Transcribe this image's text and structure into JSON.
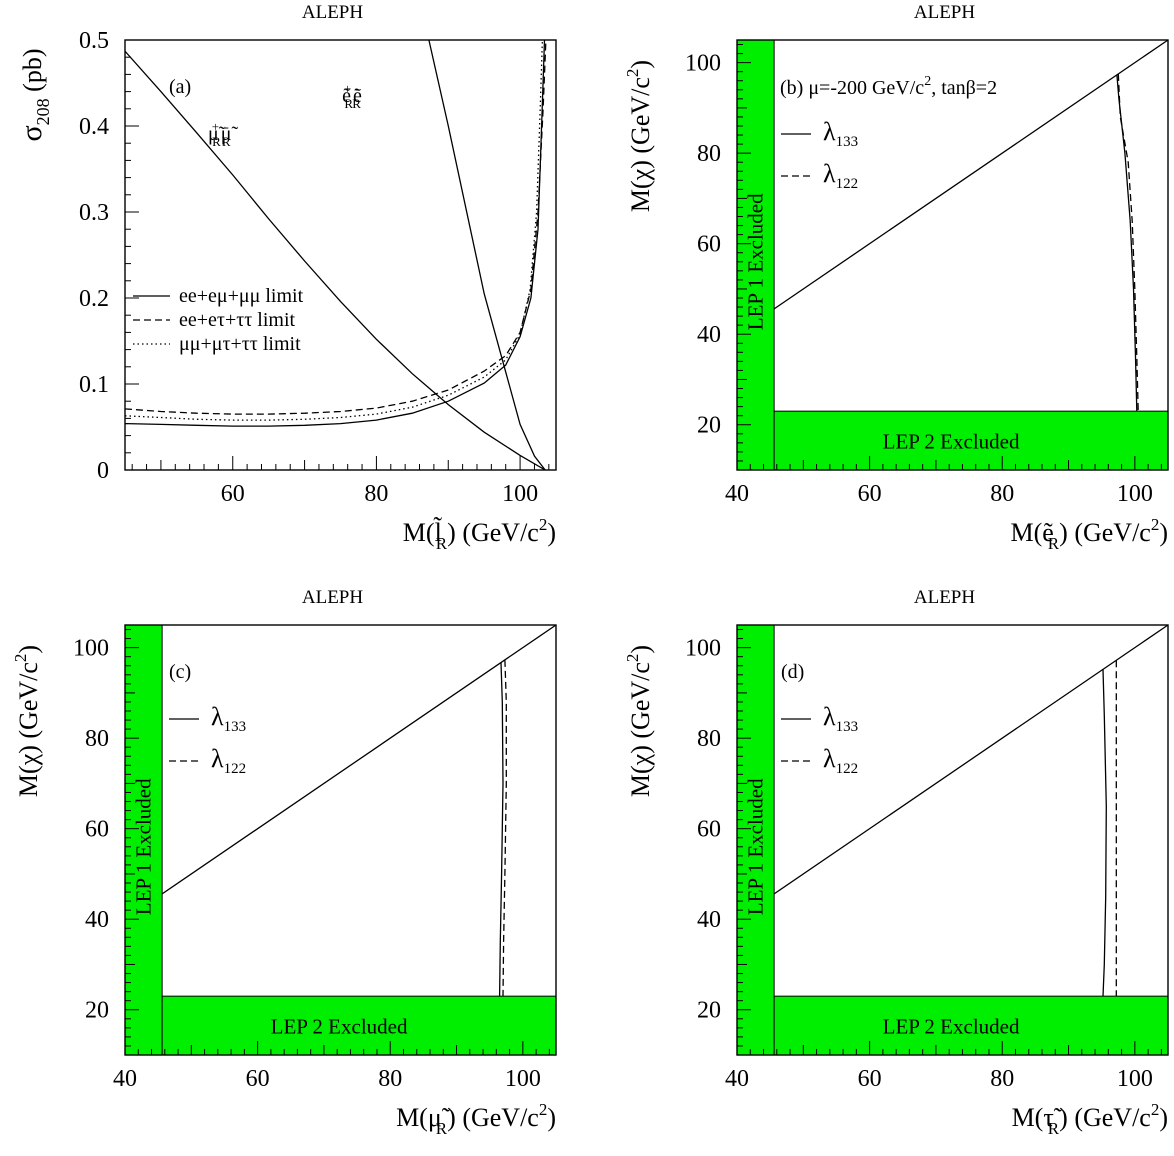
{
  "chart_data": [
    {
      "id": "a",
      "type": "line",
      "title": "ALEPH",
      "panel_label": "(a)",
      "ylabel": "σ_208 (pb)",
      "ylabel_main": "σ",
      "ylabel_sub": "208",
      "ylabel_unit": " (pb)",
      "xlabel_prefix": "M(",
      "xlabel_particle": "l",
      "xlabel_sub": "R",
      "xlabel_suffix": ") (GeV/c",
      "xlabel_sup": "2",
      "xlabel_end": ")",
      "xlim": [
        45,
        105
      ],
      "ylim": [
        0,
        0.5
      ],
      "xticks": [
        60,
        80,
        100
      ],
      "yticks": [
        0,
        0.1,
        0.2,
        0.3,
        0.4,
        0.5
      ],
      "ytick_labels": [
        "0",
        "0.1",
        "0.2",
        "0.3",
        "0.4",
        "0.5"
      ],
      "legend_position": "middle-left",
      "legend": [
        {
          "style": "solid",
          "label": "ee+eμ+μμ limit"
        },
        {
          "style": "dashed",
          "label": "ee+eτ+ττ limit"
        },
        {
          "style": "dotted",
          "label": "μμ+μτ+ττ limit"
        }
      ],
      "annotations": [
        {
          "label": "μ̃R+μ̃R-",
          "main": "μ",
          "sup": "+",
          "sub": "R",
          "main2": "μ",
          "sup2": "-",
          "sub2": "R"
        },
        {
          "label": "ẽR+ẽR-",
          "main": "e",
          "sup": "+",
          "sub": "R",
          "main2": "e",
          "sup2": "-",
          "sub2": "R"
        }
      ],
      "series": [
        {
          "style": "solid",
          "role": "cross-section",
          "x": [
            45,
            50,
            55,
            60,
            65,
            70,
            75,
            80,
            85,
            90,
            95,
            100,
            103.5
          ],
          "y": [
            0.487,
            0.44,
            0.392,
            0.343,
            0.292,
            0.243,
            0.196,
            0.152,
            0.112,
            0.076,
            0.044,
            0.017,
            0.0
          ]
        },
        {
          "style": "solid",
          "role": "cross-section",
          "x": [
            87.3,
            90,
            95,
            100,
            102,
            103.5
          ],
          "y": [
            0.5,
            0.4,
            0.205,
            0.053,
            0.016,
            0.0
          ]
        },
        {
          "style": "solid",
          "role": "limit",
          "x": [
            45,
            50,
            55,
            60,
            65,
            70,
            75,
            80,
            85,
            90,
            95,
            98,
            100,
            101.5,
            102.5,
            103,
            103.4
          ],
          "y": [
            0.054,
            0.053,
            0.052,
            0.051,
            0.051,
            0.052,
            0.054,
            0.058,
            0.066,
            0.08,
            0.101,
            0.122,
            0.155,
            0.2,
            0.28,
            0.4,
            0.5
          ]
        },
        {
          "style": "dashed",
          "role": "limit",
          "x": [
            45,
            50,
            55,
            60,
            65,
            70,
            75,
            80,
            85,
            90,
            95,
            98,
            100,
            101.5,
            102.5,
            103.2,
            103.6
          ],
          "y": [
            0.071,
            0.068,
            0.066,
            0.065,
            0.065,
            0.066,
            0.068,
            0.072,
            0.08,
            0.093,
            0.115,
            0.133,
            0.16,
            0.21,
            0.3,
            0.42,
            0.5
          ]
        },
        {
          "style": "dotted",
          "role": "limit",
          "x": [
            45,
            50,
            55,
            60,
            65,
            70,
            75,
            80,
            85,
            90,
            95,
            98,
            100,
            101.4,
            102.3,
            102.8,
            103.1
          ],
          "y": [
            0.063,
            0.061,
            0.059,
            0.058,
            0.058,
            0.059,
            0.061,
            0.065,
            0.073,
            0.087,
            0.108,
            0.128,
            0.158,
            0.21,
            0.3,
            0.42,
            0.5
          ]
        }
      ]
    },
    {
      "id": "b",
      "type": "line",
      "title": "ALEPH",
      "panel_label": "(b) μ=-200 GeV/c², tanβ=2",
      "panel_label_main": "(b) μ=-200 GeV/c",
      "panel_label_sup": "2",
      "panel_label_tail": ", tanβ=2",
      "ylabel": "M(χ) (GeV/c²)",
      "ylabel_main": "M(χ) (GeV/c",
      "ylabel_sup": "2",
      "ylabel_end": ")",
      "xlabel_prefix": "M(",
      "xlabel_particle": "e",
      "xlabel_sub": "R",
      "xlabel_suffix": ") (GeV/c",
      "xlabel_sup": "2",
      "xlabel_end": ")",
      "xlim": [
        40,
        105
      ],
      "ylim": [
        10,
        105
      ],
      "xticks": [
        40,
        60,
        80,
        100
      ],
      "yticks": [
        20,
        40,
        60,
        80,
        100
      ],
      "legend_position": "top-left",
      "legend": [
        {
          "style": "solid",
          "label": "λ",
          "sub": "133"
        },
        {
          "style": "dashed",
          "label": "λ",
          "sub": "122"
        }
      ],
      "regions": [
        {
          "label": "LEP 1 Excluded",
          "x": [
            40,
            45.6
          ],
          "y": [
            10,
            105
          ],
          "color": "#00ee00"
        },
        {
          "label": "LEP 2 Excluded",
          "x": [
            45.6,
            105
          ],
          "y": [
            10,
            23
          ],
          "color": "#00ee00"
        }
      ],
      "boundary": {
        "x": [
          45.6,
          105
        ],
        "y": [
          45.6,
          105
        ]
      },
      "series": [
        {
          "name": "λ133",
          "style": "solid",
          "x": [
            97.3,
            97.6,
            98.5,
            99.3,
            99.8,
            100.1,
            100.3
          ],
          "y": [
            97.3,
            92,
            80,
            65,
            50,
            35,
            23
          ]
        },
        {
          "name": "λ122",
          "style": "dashed",
          "x": [
            97.5,
            97.8,
            99.0,
            99.6,
            100.0,
            100.3,
            100.5
          ],
          "y": [
            97.5,
            88,
            78,
            65,
            50,
            35,
            23
          ]
        }
      ]
    },
    {
      "id": "c",
      "type": "line",
      "title": "ALEPH",
      "panel_label": "(c)",
      "ylabel": "M(χ) (GeV/c²)",
      "ylabel_main": "M(χ) (GeV/c",
      "ylabel_sup": "2",
      "ylabel_end": ")",
      "xlabel_prefix": "M(",
      "xlabel_particle": "μ",
      "xlabel_sub": "R",
      "xlabel_suffix": ") (GeV/c",
      "xlabel_sup": "2",
      "xlabel_end": ")",
      "xlim": [
        40,
        105
      ],
      "ylim": [
        10,
        105
      ],
      "xticks": [
        40,
        60,
        80,
        100
      ],
      "yticks": [
        20,
        40,
        60,
        80,
        100
      ],
      "legend_position": "top-left",
      "legend": [
        {
          "style": "solid",
          "label": "λ",
          "sub": "133"
        },
        {
          "style": "dashed",
          "label": "λ",
          "sub": "122"
        }
      ],
      "regions": [
        {
          "label": "LEP 1 Excluded",
          "x": [
            40,
            45.6
          ],
          "y": [
            10,
            105
          ],
          "color": "#00ee00"
        },
        {
          "label": "LEP 2 Excluded",
          "x": [
            45.6,
            105
          ],
          "y": [
            10,
            23
          ],
          "color": "#00ee00"
        }
      ],
      "boundary": {
        "x": [
          45.6,
          105
        ],
        "y": [
          45.6,
          105
        ]
      },
      "series": [
        {
          "name": "λ133",
          "style": "solid",
          "x": [
            96.7,
            96.9,
            97.0,
            96.8,
            96.6,
            96.5
          ],
          "y": [
            96.7,
            88,
            70,
            50,
            35,
            23
          ]
        },
        {
          "name": "λ122",
          "style": "dashed",
          "x": [
            97.3,
            97.5,
            97.5,
            97.3,
            97.1,
            97.0
          ],
          "y": [
            97.3,
            88,
            70,
            50,
            35,
            23
          ]
        }
      ]
    },
    {
      "id": "d",
      "type": "line",
      "title": "ALEPH",
      "panel_label": "(d)",
      "ylabel": "M(χ) (GeV/c²)",
      "ylabel_main": "M(χ) (GeV/c",
      "ylabel_sup": "2",
      "ylabel_end": ")",
      "xlabel_prefix": "M(",
      "xlabel_particle": "τ",
      "xlabel_sub": "R",
      "xlabel_suffix": ") (GeV/c",
      "xlabel_sup": "2",
      "xlabel_end": ")",
      "xlim": [
        40,
        105
      ],
      "ylim": [
        10,
        105
      ],
      "xticks": [
        40,
        60,
        80,
        100
      ],
      "yticks": [
        20,
        40,
        60,
        80,
        100
      ],
      "legend_position": "top-left",
      "legend": [
        {
          "style": "solid",
          "label": "λ",
          "sub": "133"
        },
        {
          "style": "dashed",
          "label": "λ",
          "sub": "122"
        }
      ],
      "regions": [
        {
          "label": "LEP 1 Excluded",
          "x": [
            40,
            45.6
          ],
          "y": [
            10,
            105
          ],
          "color": "#00ee00"
        },
        {
          "label": "LEP 2 Excluded",
          "x": [
            45.6,
            105
          ],
          "y": [
            10,
            23
          ],
          "color": "#00ee00"
        }
      ],
      "boundary": {
        "x": [
          45.6,
          105
        ],
        "y": [
          45.6,
          105
        ]
      },
      "series": [
        {
          "name": "λ133",
          "style": "solid",
          "x": [
            95.2,
            95.4,
            95.7,
            95.6,
            95.4,
            95.2
          ],
          "y": [
            95.2,
            85,
            65,
            45,
            30,
            23
          ]
        },
        {
          "name": "λ122",
          "style": "dashed",
          "x": [
            97.2,
            97.2,
            97.2,
            97.2,
            97.2,
            97.2
          ],
          "y": [
            97.2,
            85,
            65,
            45,
            30,
            23
          ]
        }
      ]
    }
  ]
}
